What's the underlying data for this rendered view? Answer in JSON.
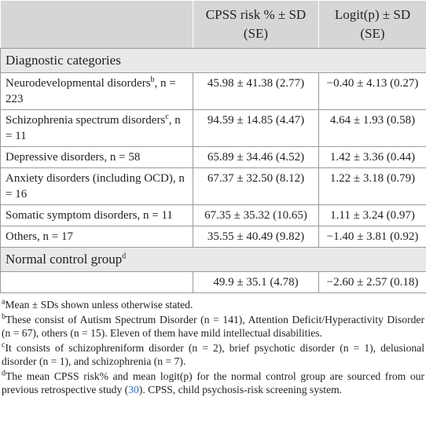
{
  "table": {
    "header": [
      "CPSS risk % ± SD (SE)",
      "Logit(p) ± SD (SE)"
    ],
    "sections": [
      {
        "title": "Diagnostic categories",
        "rows": [
          {
            "label": "Neurodevelopmental disorders",
            "sup": "b",
            "suffix": ", n = 223",
            "cells": [
              "45.98 ± 41.38 (2.77)",
              "−0.40 ± 4.13 (0.27)"
            ]
          },
          {
            "label": "Schizophrenia spectrum disorders",
            "sup": "c",
            "suffix": ", n = 11",
            "cells": [
              "94.59 ± 14.85 (4.47)",
              "4.64 ± 1.93 (0.58)"
            ]
          },
          {
            "label": "Depressive disorders, n = 58",
            "cells": [
              "65.89 ± 34.46 (4.52)",
              "1.42 ± 3.36 (0.44)"
            ]
          },
          {
            "label": "Anxiety disorders (including OCD), n = 16",
            "cells": [
              "67.37 ± 32.50 (8.12)",
              "1.22 ± 3.18 (0.79)"
            ]
          },
          {
            "label": "Somatic symptom disorders, n = 11",
            "cells": [
              "67.35 ± 35.32 (10.65)",
              "1.11 ± 3.24 (0.97)"
            ]
          },
          {
            "label": "Others, n = 17",
            "cells": [
              "35.55 ± 40.49 (9.82)",
              "−1.40 ± 3.81 (0.92)"
            ]
          }
        ]
      },
      {
        "title": "Normal control group",
        "sup": "d",
        "rows": [
          {
            "cells": [
              "49.9 ± 35.1 (4.78)",
              "−2.60 ± 2.57 (0.18)"
            ]
          }
        ]
      }
    ]
  },
  "footnotes": [
    {
      "mark": "a",
      "text": "Mean ± SDs shown unless otherwise stated."
    },
    {
      "mark": "b",
      "text": "These consist of Autism Spectrum Disorder (n = 141), Attention Deficit/Hyperactivity Disorder (n = 67), others (n = 15). Eleven of them have mild intellectual disabilities."
    },
    {
      "mark": "c",
      "text": "It consists of schizophreniform disorder (n = 2), brief psychotic disorder (n = 1), delusional disorder (n = 1), and schizophrenia (n = 7)."
    },
    {
      "mark": "d",
      "text": "The mean CPSS risk% and mean logit(p) for the normal control group are sourced from our previous retrospective study (",
      "link": "30",
      "after": "). CPSS, child psychosis-risk screening system."
    }
  ]
}
